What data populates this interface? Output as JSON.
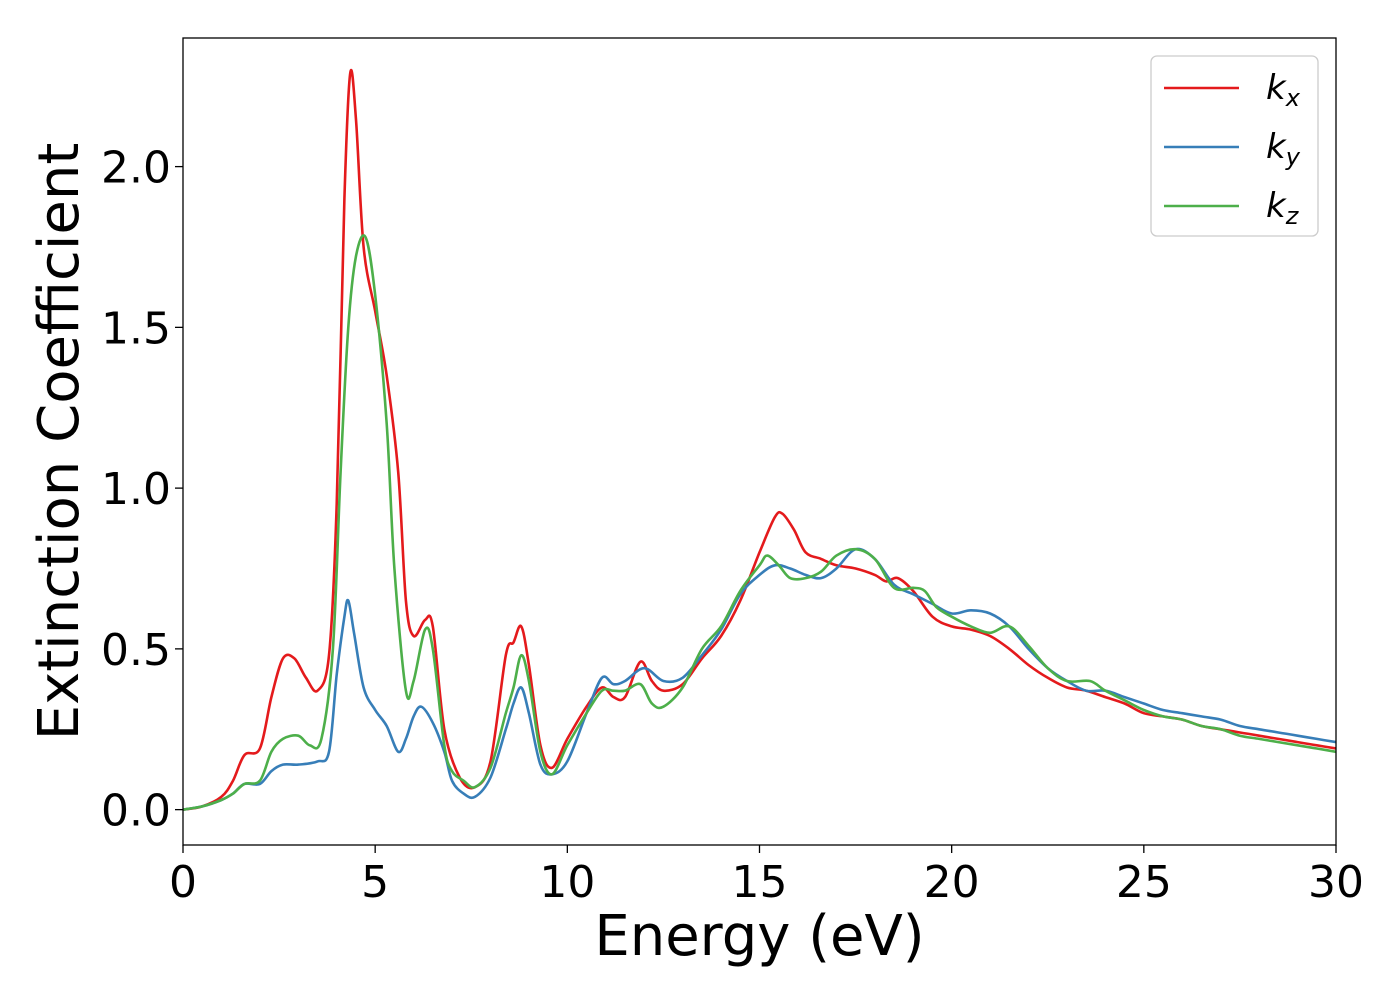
{
  "chart_data": {
    "type": "line",
    "xlabel": "Energy (eV)",
    "ylabel": "Extinction Coefficient",
    "xlim": [
      0,
      30
    ],
    "ylim": [
      -0.11,
      2.4
    ],
    "xticks": [
      0,
      5,
      10,
      15,
      20,
      25,
      30
    ],
    "xtick_labels": [
      "0",
      "5",
      "10",
      "15",
      "20",
      "25",
      "30"
    ],
    "yticks": [
      0.0,
      0.5,
      1.0,
      1.5,
      2.0
    ],
    "ytick_labels": [
      "0.0",
      "0.5",
      "1.0",
      "1.5",
      "2.0"
    ],
    "grid": false,
    "legend_position": "top-right",
    "series": [
      {
        "name": "kx",
        "legend_base": "k",
        "legend_sub": "x",
        "color": "#e41a1c",
        "points": [
          [
            0,
            0.0
          ],
          [
            0.5,
            0.01
          ],
          [
            1.0,
            0.04
          ],
          [
            1.3,
            0.09
          ],
          [
            1.6,
            0.17
          ],
          [
            2.0,
            0.19
          ],
          [
            2.3,
            0.35
          ],
          [
            2.6,
            0.47
          ],
          [
            2.9,
            0.47
          ],
          [
            3.2,
            0.41
          ],
          [
            3.5,
            0.37
          ],
          [
            3.8,
            0.48
          ],
          [
            4.0,
            0.95
          ],
          [
            4.2,
            1.9
          ],
          [
            4.35,
            2.29
          ],
          [
            4.5,
            2.15
          ],
          [
            4.7,
            1.75
          ],
          [
            5.0,
            1.55
          ],
          [
            5.3,
            1.35
          ],
          [
            5.6,
            1.05
          ],
          [
            5.8,
            0.65
          ],
          [
            6.0,
            0.54
          ],
          [
            6.3,
            0.59
          ],
          [
            6.5,
            0.57
          ],
          [
            6.8,
            0.25
          ],
          [
            7.2,
            0.1
          ],
          [
            7.6,
            0.07
          ],
          [
            8.0,
            0.15
          ],
          [
            8.4,
            0.48
          ],
          [
            8.6,
            0.52
          ],
          [
            8.8,
            0.57
          ],
          [
            9.0,
            0.45
          ],
          [
            9.3,
            0.2
          ],
          [
            9.6,
            0.13
          ],
          [
            10.0,
            0.22
          ],
          [
            10.5,
            0.32
          ],
          [
            10.9,
            0.38
          ],
          [
            11.2,
            0.35
          ],
          [
            11.5,
            0.35
          ],
          [
            11.9,
            0.46
          ],
          [
            12.2,
            0.4
          ],
          [
            12.5,
            0.37
          ],
          [
            13.0,
            0.39
          ],
          [
            13.5,
            0.47
          ],
          [
            14.0,
            0.54
          ],
          [
            14.5,
            0.65
          ],
          [
            15.0,
            0.8
          ],
          [
            15.4,
            0.91
          ],
          [
            15.6,
            0.92
          ],
          [
            15.9,
            0.87
          ],
          [
            16.2,
            0.8
          ],
          [
            16.6,
            0.78
          ],
          [
            17.0,
            0.76
          ],
          [
            17.5,
            0.75
          ],
          [
            18.0,
            0.73
          ],
          [
            18.3,
            0.71
          ],
          [
            18.6,
            0.72
          ],
          [
            19.0,
            0.68
          ],
          [
            19.5,
            0.6
          ],
          [
            20.0,
            0.57
          ],
          [
            20.5,
            0.56
          ],
          [
            21.0,
            0.54
          ],
          [
            21.5,
            0.5
          ],
          [
            22.0,
            0.45
          ],
          [
            22.5,
            0.41
          ],
          [
            23.0,
            0.38
          ],
          [
            23.5,
            0.37
          ],
          [
            24.0,
            0.35
          ],
          [
            24.5,
            0.33
          ],
          [
            25.0,
            0.3
          ],
          [
            25.5,
            0.29
          ],
          [
            26.0,
            0.28
          ],
          [
            26.5,
            0.26
          ],
          [
            27.0,
            0.25
          ],
          [
            27.5,
            0.24
          ],
          [
            28.0,
            0.23
          ],
          [
            28.5,
            0.22
          ],
          [
            29.0,
            0.21
          ],
          [
            29.5,
            0.2
          ],
          [
            30.0,
            0.19
          ]
        ]
      },
      {
        "name": "ky",
        "legend_base": "k",
        "legend_sub": "y",
        "color": "#377eb8",
        "points": [
          [
            0,
            0.0
          ],
          [
            0.5,
            0.01
          ],
          [
            1.0,
            0.03
          ],
          [
            1.3,
            0.05
          ],
          [
            1.6,
            0.08
          ],
          [
            2.0,
            0.08
          ],
          [
            2.3,
            0.12
          ],
          [
            2.6,
            0.14
          ],
          [
            3.0,
            0.14
          ],
          [
            3.5,
            0.15
          ],
          [
            3.8,
            0.18
          ],
          [
            4.0,
            0.42
          ],
          [
            4.2,
            0.6
          ],
          [
            4.3,
            0.65
          ],
          [
            4.45,
            0.55
          ],
          [
            4.7,
            0.38
          ],
          [
            5.0,
            0.31
          ],
          [
            5.3,
            0.26
          ],
          [
            5.6,
            0.18
          ],
          [
            5.8,
            0.22
          ],
          [
            6.0,
            0.29
          ],
          [
            6.2,
            0.32
          ],
          [
            6.5,
            0.27
          ],
          [
            6.8,
            0.18
          ],
          [
            7.0,
            0.09
          ],
          [
            7.3,
            0.05
          ],
          [
            7.6,
            0.04
          ],
          [
            8.0,
            0.1
          ],
          [
            8.4,
            0.25
          ],
          [
            8.6,
            0.33
          ],
          [
            8.8,
            0.38
          ],
          [
            9.0,
            0.3
          ],
          [
            9.3,
            0.14
          ],
          [
            9.6,
            0.11
          ],
          [
            10.0,
            0.15
          ],
          [
            10.5,
            0.3
          ],
          [
            10.9,
            0.41
          ],
          [
            11.2,
            0.39
          ],
          [
            11.5,
            0.4
          ],
          [
            12.0,
            0.44
          ],
          [
            12.5,
            0.4
          ],
          [
            13.0,
            0.41
          ],
          [
            13.5,
            0.48
          ],
          [
            14.0,
            0.56
          ],
          [
            14.5,
            0.67
          ],
          [
            15.0,
            0.73
          ],
          [
            15.4,
            0.76
          ],
          [
            15.8,
            0.75
          ],
          [
            16.2,
            0.73
          ],
          [
            16.6,
            0.72
          ],
          [
            17.0,
            0.75
          ],
          [
            17.5,
            0.81
          ],
          [
            18.0,
            0.78
          ],
          [
            18.5,
            0.7
          ],
          [
            19.0,
            0.67
          ],
          [
            19.5,
            0.64
          ],
          [
            20.0,
            0.61
          ],
          [
            20.5,
            0.62
          ],
          [
            21.0,
            0.61
          ],
          [
            21.5,
            0.57
          ],
          [
            22.0,
            0.5
          ],
          [
            22.5,
            0.44
          ],
          [
            23.0,
            0.4
          ],
          [
            23.5,
            0.37
          ],
          [
            24.0,
            0.37
          ],
          [
            24.5,
            0.35
          ],
          [
            25.0,
            0.33
          ],
          [
            25.5,
            0.31
          ],
          [
            26.0,
            0.3
          ],
          [
            26.5,
            0.29
          ],
          [
            27.0,
            0.28
          ],
          [
            27.5,
            0.26
          ],
          [
            28.0,
            0.25
          ],
          [
            28.5,
            0.24
          ],
          [
            29.0,
            0.23
          ],
          [
            29.5,
            0.22
          ],
          [
            30.0,
            0.21
          ]
        ]
      },
      {
        "name": "kz",
        "legend_base": "k",
        "legend_sub": "z",
        "color": "#4daf4a",
        "points": [
          [
            0,
            0.0
          ],
          [
            0.5,
            0.01
          ],
          [
            1.0,
            0.03
          ],
          [
            1.3,
            0.05
          ],
          [
            1.6,
            0.08
          ],
          [
            2.0,
            0.09
          ],
          [
            2.3,
            0.18
          ],
          [
            2.6,
            0.22
          ],
          [
            3.0,
            0.23
          ],
          [
            3.3,
            0.2
          ],
          [
            3.6,
            0.22
          ],
          [
            3.9,
            0.5
          ],
          [
            4.1,
            1.05
          ],
          [
            4.3,
            1.5
          ],
          [
            4.5,
            1.72
          ],
          [
            4.75,
            1.78
          ],
          [
            5.0,
            1.6
          ],
          [
            5.3,
            1.2
          ],
          [
            5.5,
            0.75
          ],
          [
            5.8,
            0.37
          ],
          [
            6.0,
            0.4
          ],
          [
            6.3,
            0.56
          ],
          [
            6.5,
            0.5
          ],
          [
            6.8,
            0.2
          ],
          [
            7.0,
            0.12
          ],
          [
            7.3,
            0.09
          ],
          [
            7.6,
            0.07
          ],
          [
            8.0,
            0.13
          ],
          [
            8.4,
            0.3
          ],
          [
            8.6,
            0.38
          ],
          [
            8.8,
            0.48
          ],
          [
            9.0,
            0.4
          ],
          [
            9.3,
            0.18
          ],
          [
            9.6,
            0.11
          ],
          [
            10.0,
            0.2
          ],
          [
            10.5,
            0.3
          ],
          [
            10.9,
            0.37
          ],
          [
            11.2,
            0.37
          ],
          [
            11.5,
            0.37
          ],
          [
            11.9,
            0.39
          ],
          [
            12.2,
            0.33
          ],
          [
            12.5,
            0.32
          ],
          [
            13.0,
            0.38
          ],
          [
            13.5,
            0.5
          ],
          [
            14.0,
            0.57
          ],
          [
            14.5,
            0.68
          ],
          [
            15.0,
            0.76
          ],
          [
            15.2,
            0.79
          ],
          [
            15.5,
            0.76
          ],
          [
            15.8,
            0.72
          ],
          [
            16.2,
            0.72
          ],
          [
            16.6,
            0.74
          ],
          [
            17.0,
            0.79
          ],
          [
            17.5,
            0.81
          ],
          [
            18.0,
            0.78
          ],
          [
            18.5,
            0.69
          ],
          [
            19.0,
            0.69
          ],
          [
            19.3,
            0.68
          ],
          [
            19.6,
            0.63
          ],
          [
            20.0,
            0.6
          ],
          [
            20.5,
            0.57
          ],
          [
            21.0,
            0.55
          ],
          [
            21.5,
            0.57
          ],
          [
            22.0,
            0.51
          ],
          [
            22.5,
            0.44
          ],
          [
            23.0,
            0.4
          ],
          [
            23.6,
            0.4
          ],
          [
            24.0,
            0.37
          ],
          [
            24.5,
            0.34
          ],
          [
            25.0,
            0.31
          ],
          [
            25.5,
            0.29
          ],
          [
            26.0,
            0.28
          ],
          [
            26.5,
            0.26
          ],
          [
            27.0,
            0.25
          ],
          [
            27.5,
            0.23
          ],
          [
            28.0,
            0.22
          ],
          [
            28.5,
            0.21
          ],
          [
            29.0,
            0.2
          ],
          [
            29.5,
            0.19
          ],
          [
            30.0,
            0.18
          ]
        ]
      }
    ]
  }
}
